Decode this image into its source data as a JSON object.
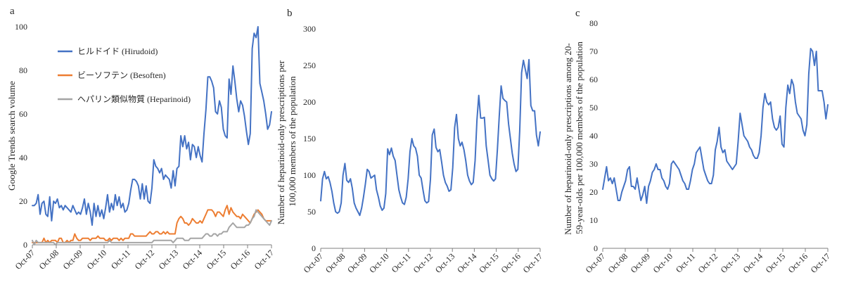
{
  "chart_data": [
    {
      "panel_label": "a",
      "type": "line",
      "ylabel": "Google Trends search volume",
      "ylim": [
        0,
        100
      ],
      "yticks": [
        "0",
        "20",
        "40",
        "60",
        "80",
        "100"
      ],
      "xticks": [
        "Oct-07",
        "Oct-08",
        "Oct-09",
        "Oct-10",
        "Oct-11",
        "Oct-12",
        "Oct-13",
        "Oct-14",
        "Oct-15",
        "Oct-16",
        "Oct-17"
      ],
      "grid": false,
      "legend_position": "top-left",
      "series": [
        {
          "name": "ヒルドイド (Hirudoid)",
          "color": "#4472c4",
          "values": [
            18,
            18,
            19,
            23,
            14,
            19,
            20,
            14,
            13,
            22,
            11,
            20,
            19,
            21,
            17,
            18,
            16,
            18,
            17,
            16,
            15,
            18,
            16,
            14,
            15,
            14,
            17,
            21,
            14,
            19,
            15,
            9,
            19,
            13,
            18,
            13,
            16,
            12,
            17,
            23,
            15,
            19,
            16,
            23,
            18,
            22,
            17,
            19,
            15,
            16,
            19,
            25,
            30,
            30,
            29,
            27,
            21,
            28,
            21,
            27,
            20,
            19,
            26,
            39,
            36,
            35,
            33,
            35,
            30,
            32,
            31,
            30,
            26,
            34,
            27,
            35,
            36,
            50,
            45,
            50,
            44,
            47,
            39,
            46,
            45,
            40,
            45,
            41,
            38,
            51,
            62,
            77,
            77,
            75,
            72,
            61,
            60,
            66,
            63,
            53,
            50,
            49,
            76,
            69,
            82,
            75,
            67,
            61,
            66,
            64,
            59,
            52,
            46,
            51,
            90,
            97,
            95,
            100,
            74,
            70,
            66,
            60,
            53,
            55,
            61
          ]
        },
        {
          "name": "ビーソフテン (Besoften)",
          "color": "#ed7d31",
          "values": [
            1,
            1,
            1,
            1,
            1,
            1,
            3,
            1,
            2,
            1,
            2,
            2,
            2,
            1,
            3,
            3,
            1,
            1,
            2,
            1,
            2,
            2,
            5,
            3,
            2,
            2,
            3,
            3,
            3,
            3,
            2,
            3,
            3,
            3,
            4,
            3,
            3,
            3,
            2,
            2,
            3,
            2,
            3,
            3,
            3,
            2,
            3,
            2,
            3,
            3,
            3,
            5,
            5,
            4,
            4,
            4,
            4,
            4,
            4,
            4,
            5,
            6,
            5,
            5,
            6,
            6,
            5,
            5,
            6,
            5,
            6,
            5,
            5,
            5,
            5,
            10,
            12,
            13,
            12,
            10,
            10,
            9,
            10,
            12,
            11,
            10,
            10,
            11,
            10,
            12,
            14,
            16,
            16,
            16,
            15,
            13,
            15,
            15,
            14,
            13,
            16,
            18,
            14,
            17,
            15,
            14,
            13,
            13,
            12,
            14,
            13,
            12,
            11,
            10,
            12,
            14,
            15,
            16,
            15,
            14,
            12,
            11,
            11,
            11,
            11
          ]
        },
        {
          "name": "ヘパリン類似物質 (Heparinoid)",
          "color": "#a5a5a5",
          "values": [
            2,
            0,
            2,
            1,
            1,
            1,
            1,
            1,
            1,
            1,
            1,
            1,
            0,
            1,
            1,
            1,
            1,
            1,
            1,
            1,
            1,
            1,
            1,
            1,
            1,
            1,
            1,
            1,
            1,
            1,
            1,
            1,
            1,
            1,
            1,
            1,
            1,
            1,
            1,
            1,
            2,
            1,
            1,
            1,
            1,
            1,
            1,
            1,
            1,
            1,
            1,
            1,
            1,
            1,
            1,
            1,
            1,
            1,
            1,
            1,
            1,
            1,
            1,
            2,
            2,
            2,
            2,
            2,
            2,
            2,
            2,
            2,
            2,
            1,
            2,
            3,
            3,
            3,
            3,
            2,
            2,
            2,
            3,
            3,
            3,
            3,
            3,
            3,
            3,
            4,
            5,
            5,
            4,
            4,
            5,
            5,
            4,
            5,
            5,
            6,
            6,
            6,
            8,
            9,
            10,
            9,
            8,
            8,
            8,
            8,
            8,
            9,
            9,
            10,
            12,
            13,
            16,
            15,
            14,
            13,
            12,
            11,
            10,
            9,
            11
          ]
        }
      ]
    },
    {
      "panel_label": "b",
      "type": "line",
      "ylabel_lines": [
        "Number of heparinoid-only prescriptions per",
        "100,000 members of the population"
      ],
      "ylim": [
        0,
        300
      ],
      "yticks": [
        "0",
        "50",
        "100",
        "150",
        "200",
        "250",
        "300"
      ],
      "xticks": [
        "Oct-07",
        "Oct-08",
        "Oct-09",
        "Oct-10",
        "Oct-11",
        "Oct-12",
        "Oct-13",
        "Oct-14",
        "Oct-15",
        "Oct-16",
        "Oct-17"
      ],
      "grid": false,
      "series": [
        {
          "color": "#4472c4",
          "values": [
            65,
            95,
            105,
            95,
            98,
            90,
            78,
            62,
            50,
            48,
            50,
            62,
            100,
            116,
            93,
            90,
            95,
            82,
            62,
            55,
            50,
            45,
            55,
            70,
            88,
            108,
            105,
            96,
            98,
            100,
            80,
            70,
            58,
            52,
            55,
            75,
            136,
            128,
            137,
            126,
            120,
            100,
            80,
            70,
            62,
            60,
            70,
            95,
            132,
            150,
            140,
            137,
            126,
            100,
            96,
            80,
            65,
            62,
            64,
            94,
            155,
            163,
            138,
            132,
            135,
            118,
            100,
            90,
            85,
            78,
            80,
            110,
            165,
            183,
            150,
            140,
            145,
            135,
            120,
            100,
            92,
            87,
            90,
            120,
            175,
            209,
            178,
            178,
            179,
            140,
            120,
            100,
            95,
            92,
            95,
            135,
            180,
            222,
            205,
            202,
            200,
            170,
            150,
            130,
            115,
            105,
            108,
            160,
            240,
            257,
            245,
            232,
            258,
            195,
            188,
            188,
            155,
            140,
            159
          ]
        }
      ]
    },
    {
      "panel_label": "c",
      "type": "line",
      "ylabel_lines": [
        "Number of heparinoid-only prescriptions among 20-",
        "59-year-olds per 100,000 members of the population"
      ],
      "ylim": [
        0,
        80
      ],
      "yticks": [
        "0",
        "10",
        "20",
        "30",
        "40",
        "50",
        "60",
        "70",
        "80"
      ],
      "xticks": [
        "Oct-07",
        "Oct-08",
        "Oct-09",
        "Oct-10",
        "Oct-11",
        "Oct-12",
        "Oct-13",
        "Oct-14",
        "Oct-15",
        "Oct-16",
        "Oct-17"
      ],
      "grid": false,
      "series": [
        {
          "color": "#4472c4",
          "values": [
            21,
            25,
            29,
            24,
            25,
            23,
            25,
            21,
            17,
            17,
            20,
            22,
            24,
            28,
            29,
            22,
            22,
            21,
            25,
            21,
            17,
            19,
            22,
            16,
            22,
            24,
            27,
            28,
            30,
            28,
            28,
            25,
            24,
            22,
            21,
            23,
            30,
            31,
            30,
            29,
            28,
            26,
            24,
            23,
            21,
            21,
            24,
            28,
            30,
            34,
            35,
            36,
            32,
            28,
            26,
            24,
            23,
            23,
            26,
            35,
            38,
            43,
            36,
            34,
            35,
            31,
            30,
            29,
            28,
            29,
            30,
            38,
            48,
            44,
            40,
            39,
            38,
            36,
            35,
            33,
            32,
            32,
            34,
            40,
            50,
            55,
            52,
            51,
            52,
            46,
            43,
            42,
            43,
            47,
            37,
            36,
            50,
            58,
            55,
            60,
            58,
            52,
            48,
            47,
            46,
            42,
            40,
            44,
            62,
            71,
            70,
            65,
            70,
            56,
            56,
            56,
            52,
            46,
            51
          ]
        }
      ]
    }
  ]
}
